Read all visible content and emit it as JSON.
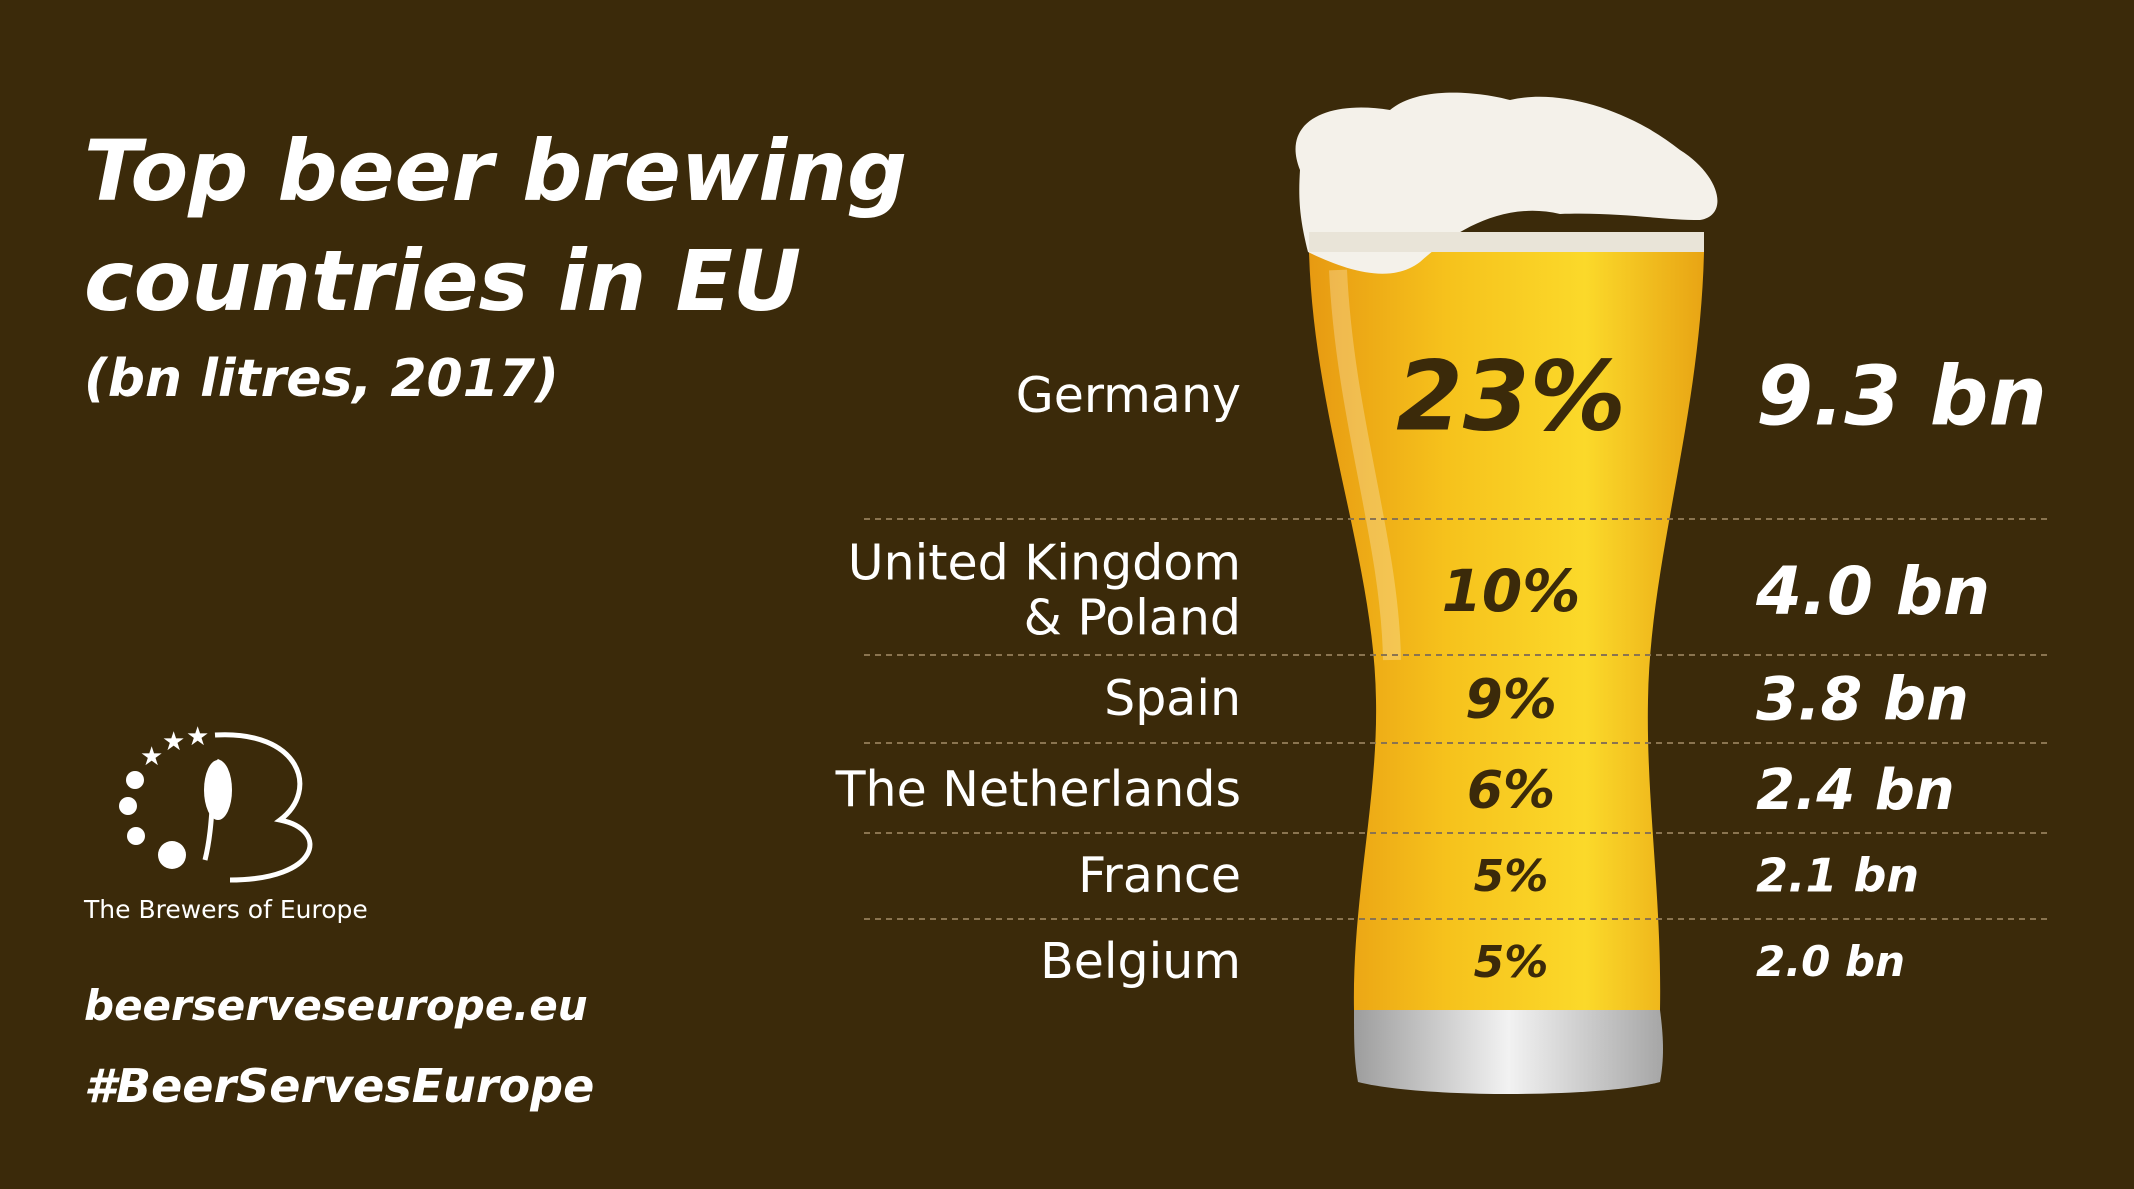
{
  "title": [
    "Top beer brewing",
    "countries in EU"
  ],
  "subtitle": "(bn litres, 2017)",
  "logo_caption": "The Brewers of Europe",
  "website": "beerserveseurope.eu",
  "hashtag": "#BeerServesEurope",
  "rows": [
    {
      "country": [
        "Germany"
      ],
      "share": "23%",
      "volume": "9.3 bn"
    },
    {
      "country": [
        "United  Kingdom",
        "& Poland"
      ],
      "share": "10%",
      "volume": "4.0 bn"
    },
    {
      "country": [
        "Spain"
      ],
      "share": "9%",
      "volume": "3.8 bn"
    },
    {
      "country": [
        "The Netherlands"
      ],
      "share": "6%",
      "volume": "2.4 bn"
    },
    {
      "country": [
        "France"
      ],
      "share": "5%",
      "volume": "2.1 bn"
    },
    {
      "country": [
        "Belgium"
      ],
      "share": "5%",
      "volume": "2.0 bn"
    }
  ]
}
